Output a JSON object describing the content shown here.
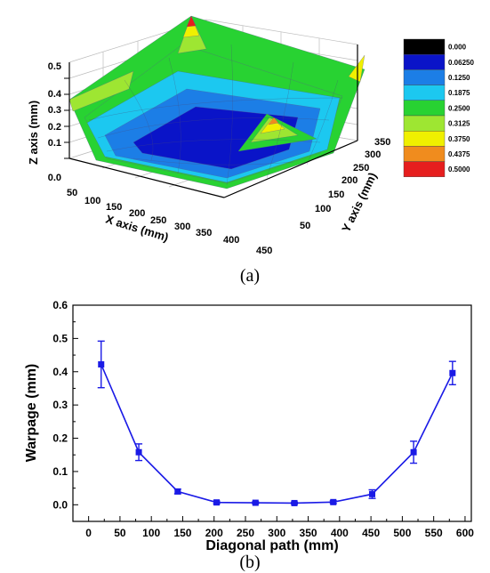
{
  "figures": {
    "a": {
      "caption": "(a)",
      "z_axis_label": "Z axis (mm)",
      "x_axis_label": "X axis (mm)",
      "y_axis_label": "Y axis (mm)",
      "z_ticks": [
        "0.0",
        "0.1",
        "0.2",
        "0.3",
        "0.4",
        "0.5"
      ],
      "x_ticks": [
        "50",
        "100",
        "150",
        "200",
        "250",
        "300",
        "350",
        "400",
        "450"
      ],
      "y_ticks": [
        "50",
        "100",
        "150",
        "200",
        "250",
        "300",
        "350"
      ],
      "colorbar": {
        "labels": [
          "0.000",
          "0.06250",
          "0.1250",
          "0.1875",
          "0.2500",
          "0.3125",
          "0.3750",
          "0.4375",
          "0.5000"
        ],
        "colors": [
          "#000000",
          "#0a14c8",
          "#1c7ee6",
          "#1cc8f0",
          "#28d232",
          "#9ee632",
          "#f0f000",
          "#f08c1e",
          "#e61e1e"
        ]
      }
    },
    "b": {
      "caption": "(b)"
    }
  },
  "chart_data": [
    {
      "type": "surface",
      "title": "",
      "xlabel": "X axis (mm)",
      "ylabel": "Y axis (mm)",
      "zlabel": "Z axis (mm)",
      "xlim": [
        50,
        450
      ],
      "ylim": [
        50,
        350
      ],
      "zlim": [
        0.0,
        0.5
      ],
      "colorscale_range": [
        0.0,
        0.5
      ]
    },
    {
      "type": "line",
      "title": "",
      "xlabel": "Diagonal path (mm)",
      "ylabel": "Warpage (mm)",
      "xlim": [
        -25,
        610
      ],
      "ylim": [
        -0.05,
        0.6
      ],
      "xticks": [
        0,
        50,
        100,
        150,
        200,
        250,
        300,
        350,
        400,
        450,
        500,
        550,
        600
      ],
      "yticks": [
        0.0,
        0.1,
        0.2,
        0.3,
        0.4,
        0.5,
        0.6
      ],
      "color": "#1a1ae6",
      "x": [
        20,
        80,
        142,
        204,
        266,
        328,
        390,
        452,
        518,
        580
      ],
      "y": [
        0.422,
        0.158,
        0.04,
        0.007,
        0.006,
        0.005,
        0.008,
        0.032,
        0.158,
        0.396
      ],
      "err": [
        0.07,
        0.025,
        0.007,
        0.004,
        0.003,
        0.003,
        0.004,
        0.013,
        0.033,
        0.035
      ]
    }
  ]
}
